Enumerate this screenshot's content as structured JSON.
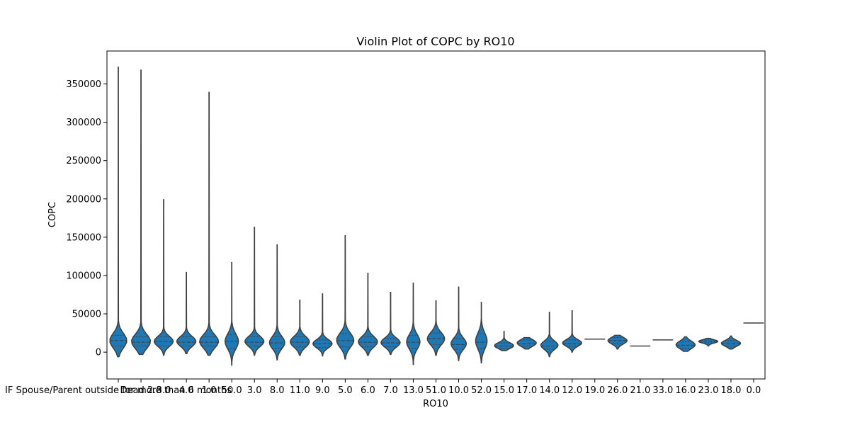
{
  "chart_data": {
    "type": "violin",
    "title": "Violin Plot of COPC by RO10",
    "xlabel": "RO10",
    "ylabel": "COPC",
    "ylim": [
      -35000,
      393000
    ],
    "yticks": [
      0,
      50000,
      100000,
      150000,
      200000,
      250000,
      300000,
      350000
    ],
    "ytick_labels": [
      "0",
      "50000",
      "100000",
      "150000",
      "200000",
      "250000",
      "300000",
      "350000"
    ],
    "grid": false,
    "color": "#1f77b4",
    "categories": [
      "IF Spouse/Parent outside for more than 6 months",
      "Dead 2.0",
      "3.0",
      "4.0",
      "1.0",
      "50.0",
      "3.0",
      "8.0",
      "11.0",
      "9.0",
      "5.0",
      "6.0",
      "7.0",
      "13.0",
      "51.0",
      "10.0",
      "52.0",
      "15.0",
      "17.0",
      "14.0",
      "12.0",
      "19.0",
      "26.0",
      "21.0",
      "33.0",
      "16.0",
      "23.0",
      "18.0",
      "0.0"
    ],
    "violins": [
      {
        "min": -6000,
        "max": 372000,
        "q1": 8000,
        "median": 15000,
        "q3": 22000,
        "halfwidth": 0.9
      },
      {
        "min": -3000,
        "max": 368000,
        "q1": 8000,
        "median": 13000,
        "q3": 20000,
        "halfwidth": 1.0
      },
      {
        "min": -4000,
        "max": 199000,
        "q1": 8000,
        "median": 14000,
        "q3": 20000,
        "halfwidth": 1.0
      },
      {
        "min": -2000,
        "max": 104000,
        "q1": 8000,
        "median": 13000,
        "q3": 20000,
        "halfwidth": 1.0
      },
      {
        "min": -4000,
        "max": 339000,
        "q1": 8000,
        "median": 13000,
        "q3": 20000,
        "halfwidth": 1.0
      },
      {
        "min": -17000,
        "max": 117000,
        "q1": 5000,
        "median": 14000,
        "q3": 23000,
        "halfwidth": 0.7
      },
      {
        "min": -4000,
        "max": 163000,
        "q1": 8000,
        "median": 13000,
        "q3": 20000,
        "halfwidth": 1.0
      },
      {
        "min": -10000,
        "max": 140000,
        "q1": 5000,
        "median": 12000,
        "q3": 20000,
        "halfwidth": 0.8
      },
      {
        "min": -4000,
        "max": 68000,
        "q1": 7000,
        "median": 13000,
        "q3": 20000,
        "halfwidth": 1.0
      },
      {
        "min": -5000,
        "max": 76000,
        "q1": 6000,
        "median": 11000,
        "q3": 16000,
        "halfwidth": 1.0
      },
      {
        "min": -9000,
        "max": 152000,
        "q1": 7000,
        "median": 15000,
        "q3": 24000,
        "halfwidth": 0.9
      },
      {
        "min": -4000,
        "max": 103000,
        "q1": 7000,
        "median": 13000,
        "q3": 20000,
        "halfwidth": 1.0
      },
      {
        "min": -3000,
        "max": 78000,
        "q1": 7000,
        "median": 12000,
        "q3": 18000,
        "halfwidth": 1.0
      },
      {
        "min": -16000,
        "max": 90000,
        "q1": 5000,
        "median": 13000,
        "q3": 22000,
        "halfwidth": 0.7
      },
      {
        "min": -4000,
        "max": 67000,
        "q1": 10000,
        "median": 18000,
        "q3": 25000,
        "halfwidth": 0.9
      },
      {
        "min": -11000,
        "max": 85000,
        "q1": 4000,
        "median": 10000,
        "q3": 18000,
        "halfwidth": 0.8
      },
      {
        "min": -14000,
        "max": 65000,
        "q1": 5000,
        "median": 13000,
        "q3": 24000,
        "halfwidth": 0.6
      },
      {
        "min": 2000,
        "max": 27000,
        "q1": 5000,
        "median": 8000,
        "q3": 12000,
        "halfwidth": 1.0
      },
      {
        "min": 4000,
        "max": 19000,
        "q1": 8000,
        "median": 11000,
        "q3": 16000,
        "halfwidth": 1.0
      },
      {
        "min": -6000,
        "max": 52000,
        "q1": 4000,
        "median": 8000,
        "q3": 14000,
        "halfwidth": 0.9
      },
      {
        "min": 0,
        "max": 54000,
        "q1": 8000,
        "median": 11000,
        "q3": 16000,
        "halfwidth": 1.0
      },
      {
        "min": 17000,
        "max": 17000,
        "q1": 17000,
        "median": 17000,
        "q3": 17000,
        "halfwidth": 0.0
      },
      {
        "min": 4000,
        "max": 22000,
        "q1": 11000,
        "median": 15000,
        "q3": 19000,
        "halfwidth": 1.0
      },
      {
        "min": 8000,
        "max": 8000,
        "q1": 8000,
        "median": 8000,
        "q3": 8000,
        "halfwidth": 0.0
      },
      {
        "min": 16000,
        "max": 16000,
        "q1": 16000,
        "median": 16000,
        "q3": 16000,
        "halfwidth": 0.0
      },
      {
        "min": 1000,
        "max": 20000,
        "q1": 5000,
        "median": 9000,
        "q3": 14000,
        "halfwidth": 1.0
      },
      {
        "min": 8000,
        "max": 18000,
        "q1": 12000,
        "median": 14000,
        "q3": 16000,
        "halfwidth": 1.0
      },
      {
        "min": 4000,
        "max": 21000,
        "q1": 8000,
        "median": 11000,
        "q3": 15000,
        "halfwidth": 1.0
      },
      {
        "min": 38000,
        "max": 38000,
        "q1": 38000,
        "median": 38000,
        "q3": 38000,
        "halfwidth": 0.0
      }
    ]
  }
}
